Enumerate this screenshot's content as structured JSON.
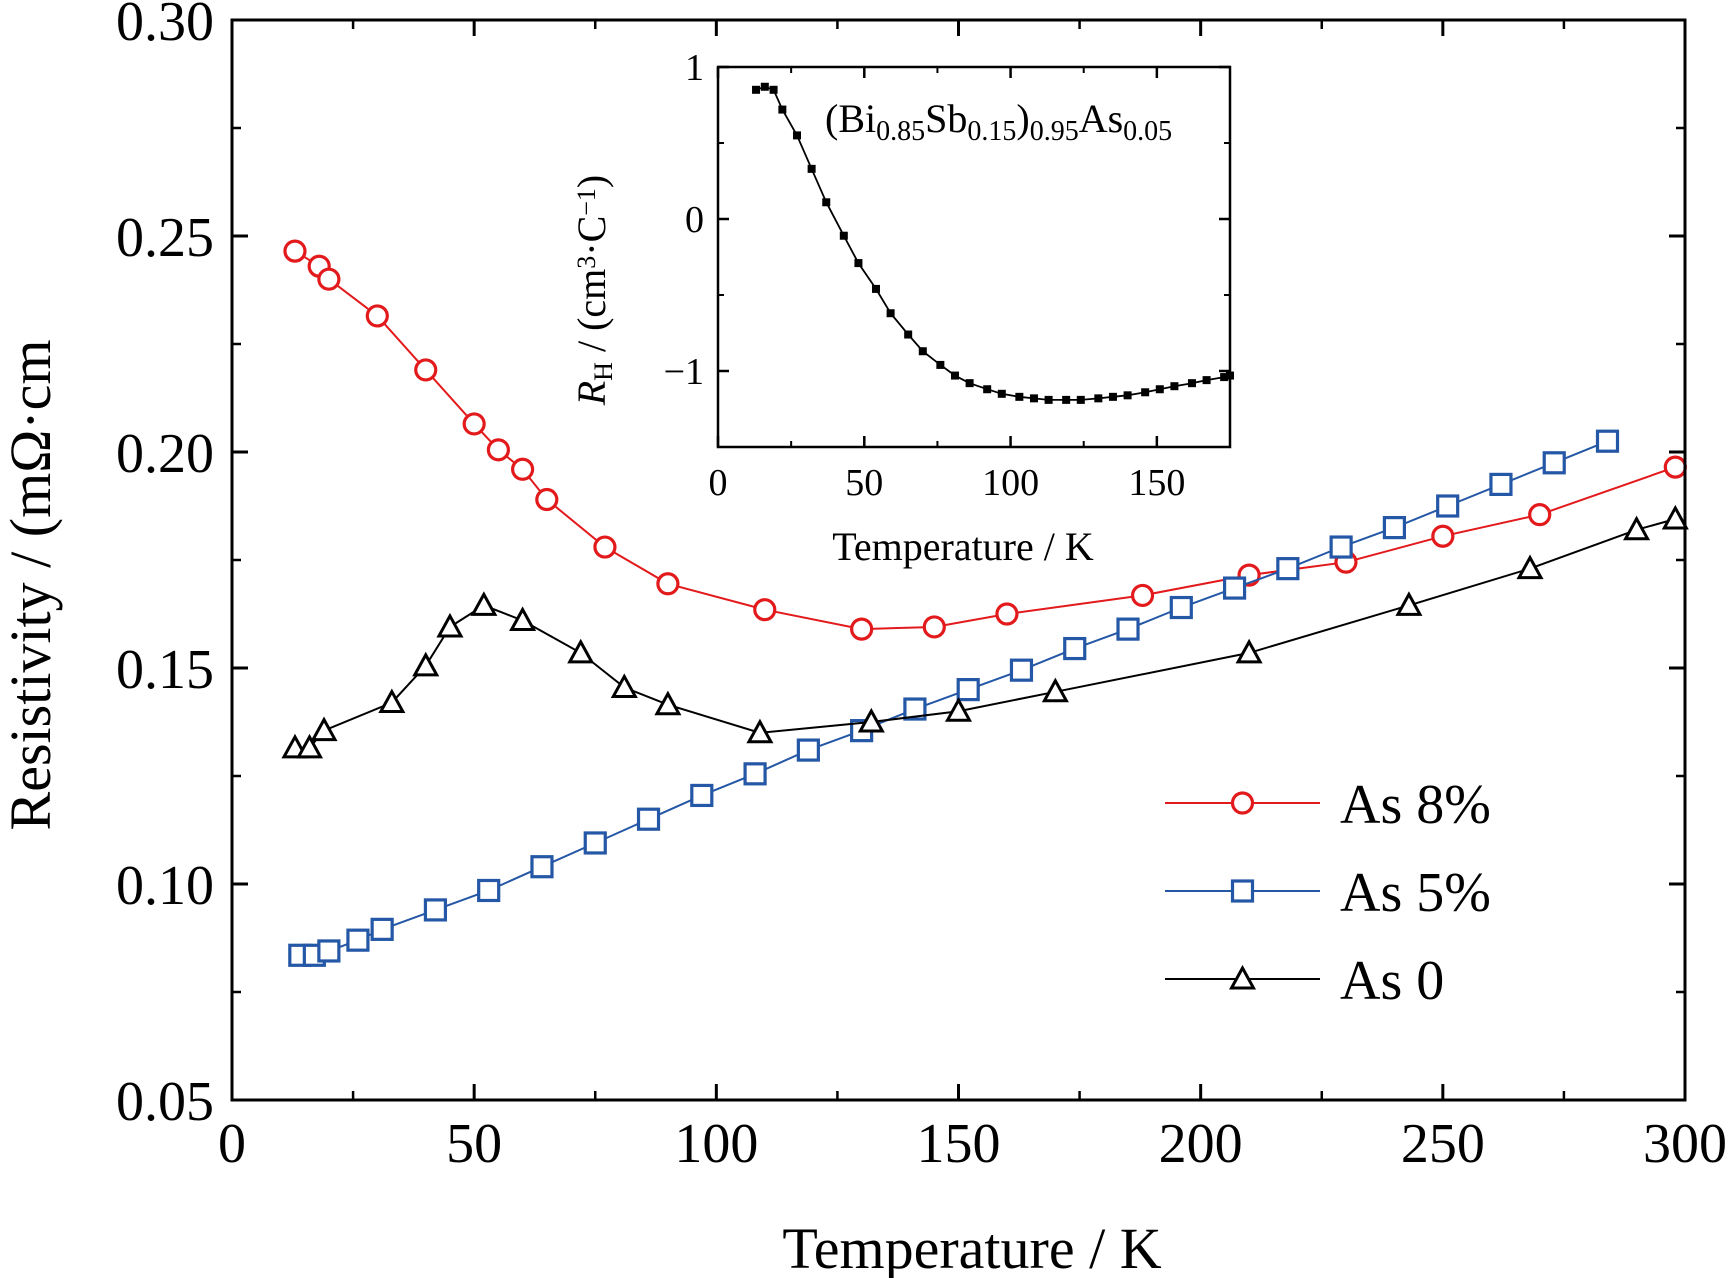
{
  "chart_data": [
    {
      "type": "line",
      "xlabel": "Temperature / K",
      "ylabel": "Resistivity / (mΩ·cm",
      "xlim": [
        0,
        300
      ],
      "ylim": [
        0.05,
        0.3
      ],
      "xticks": [
        "0",
        "50",
        "100",
        "150",
        "200",
        "250",
        "300"
      ],
      "yticks": [
        "0.05",
        "0.10",
        "0.15",
        "0.20",
        "0.25",
        "0.30"
      ],
      "grid": false,
      "legend_position": "bottom-right",
      "series": [
        {
          "name": "As 8%",
          "color": "#e31a1c",
          "marker": "circle",
          "x": [
            13,
            18,
            20,
            30,
            40,
            50,
            55,
            60,
            65,
            77,
            90,
            110,
            130,
            145,
            160,
            188,
            210,
            230,
            250,
            270,
            298
          ],
          "y": [
            0.2465,
            0.243,
            0.24,
            0.2315,
            0.219,
            0.2065,
            0.2005,
            0.196,
            0.189,
            0.178,
            0.1695,
            0.1635,
            0.159,
            0.1595,
            0.1625,
            0.1668,
            0.1715,
            0.1745,
            0.1805,
            0.1855,
            0.1965
          ]
        },
        {
          "name": "As 5%",
          "color": "#2457a6",
          "marker": "square",
          "x": [
            14,
            17,
            20,
            26,
            31,
            42,
            53,
            64,
            75,
            86,
            97,
            108,
            119,
            130,
            141,
            152,
            163,
            174,
            185,
            196,
            207,
            218,
            229,
            240,
            251,
            262,
            273,
            284
          ],
          "y": [
            0.0835,
            0.0835,
            0.0845,
            0.087,
            0.0895,
            0.094,
            0.0985,
            0.104,
            0.1095,
            0.115,
            0.1205,
            0.1255,
            0.131,
            0.1355,
            0.1405,
            0.145,
            0.1495,
            0.1545,
            0.159,
            0.164,
            0.1685,
            0.173,
            0.178,
            0.1825,
            0.1875,
            0.1925,
            0.1975,
            0.2025
          ]
        },
        {
          "name": "As 0",
          "color": "#000000",
          "marker": "triangle",
          "x": [
            13,
            16,
            19,
            33,
            40,
            45,
            52,
            60,
            72,
            81,
            90,
            109,
            132,
            150,
            170,
            210,
            243,
            268,
            290,
            298
          ],
          "y": [
            0.1315,
            0.1315,
            0.1355,
            0.142,
            0.1505,
            0.1595,
            0.1645,
            0.161,
            0.1535,
            0.1455,
            0.1415,
            0.135,
            0.1375,
            0.14,
            0.1445,
            0.1535,
            0.1645,
            0.173,
            0.182,
            0.1845
          ]
        }
      ]
    },
    {
      "type": "line",
      "title": "(Bi0.85Sb0.15)0.95As0.05",
      "title_parts": [
        {
          "text": "(Bi",
          "sub": false
        },
        {
          "text": "0.85",
          "sub": true
        },
        {
          "text": "Sb",
          "sub": false
        },
        {
          "text": "0.15",
          "sub": true
        },
        {
          "text": ")",
          "sub": false
        },
        {
          "text": "0.95",
          "sub": true
        },
        {
          "text": "As",
          "sub": false
        },
        {
          "text": "0.05",
          "sub": true
        }
      ],
      "xlabel": "Temperature / K",
      "ylabel": "RH / (cm3·C−1)",
      "ylabel_parts": [
        {
          "text": "R",
          "style": "italic"
        },
        {
          "text": "H",
          "style": "sub"
        },
        {
          "text": " / (cm",
          "style": "normal"
        },
        {
          "text": "3",
          "style": "sup"
        },
        {
          "text": "·C",
          "style": "normal"
        },
        {
          "text": "−1",
          "style": "sup"
        },
        {
          "text": ")",
          "style": "normal"
        }
      ],
      "xlim": [
        0,
        175
      ],
      "ylim": [
        -1.5,
        1.0
      ],
      "xticks": [
        "0",
        "50",
        "100",
        "150"
      ],
      "yticks": [
        "1",
        "0",
        "−1"
      ],
      "grid": false,
      "series": [
        {
          "color": "#000000",
          "marker": "small-square",
          "x": [
            13,
            16,
            19,
            22,
            27,
            32,
            37,
            43,
            48,
            54,
            59,
            65,
            70,
            76,
            81,
            86,
            92,
            97,
            103,
            108,
            113,
            119,
            124,
            130,
            135,
            140,
            146,
            151,
            156,
            162,
            167,
            173,
            175
          ],
          "y": [
            0.85,
            0.87,
            0.85,
            0.72,
            0.55,
            0.33,
            0.11,
            -0.11,
            -0.29,
            -0.46,
            -0.62,
            -0.76,
            -0.87,
            -0.96,
            -1.03,
            -1.08,
            -1.12,
            -1.15,
            -1.17,
            -1.18,
            -1.19,
            -1.19,
            -1.19,
            -1.18,
            -1.17,
            -1.16,
            -1.14,
            -1.12,
            -1.1,
            -1.08,
            -1.06,
            -1.04,
            -1.03
          ]
        }
      ]
    }
  ]
}
